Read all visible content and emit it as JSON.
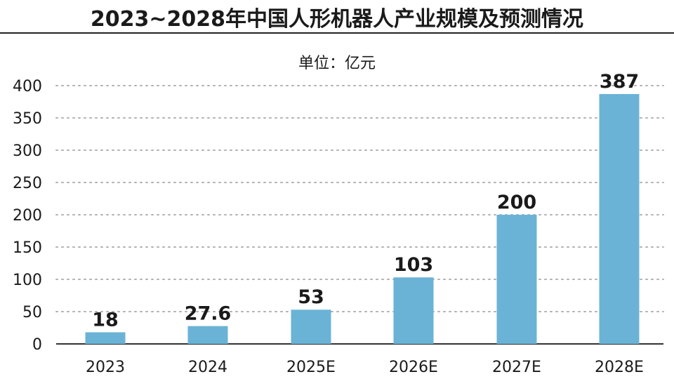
{
  "title": "2023~2028年中国人形机器人产业规模及预测情况",
  "unit_label": "单位：亿元",
  "colors": {
    "bar": "#6bb3d6",
    "grid": "#b0b0b0",
    "axis": "#333333",
    "text": "#1a1a1a"
  },
  "chart_data": {
    "type": "bar",
    "title": "2023~2028年中国人形机器人产业规模及预测情况",
    "xlabel": "",
    "ylabel": "",
    "categories": [
      "2023",
      "2024",
      "2025E",
      "2026E",
      "2027E",
      "2028E"
    ],
    "values": [
      18,
      27.6,
      53,
      103,
      200,
      387
    ],
    "value_labels": [
      "18",
      "27.6",
      "53",
      "103",
      "200",
      "387"
    ],
    "ylim": [
      0,
      400
    ],
    "yticks": [
      0,
      50,
      100,
      150,
      200,
      250,
      300,
      350,
      400
    ],
    "grid": true,
    "legend": "none"
  }
}
